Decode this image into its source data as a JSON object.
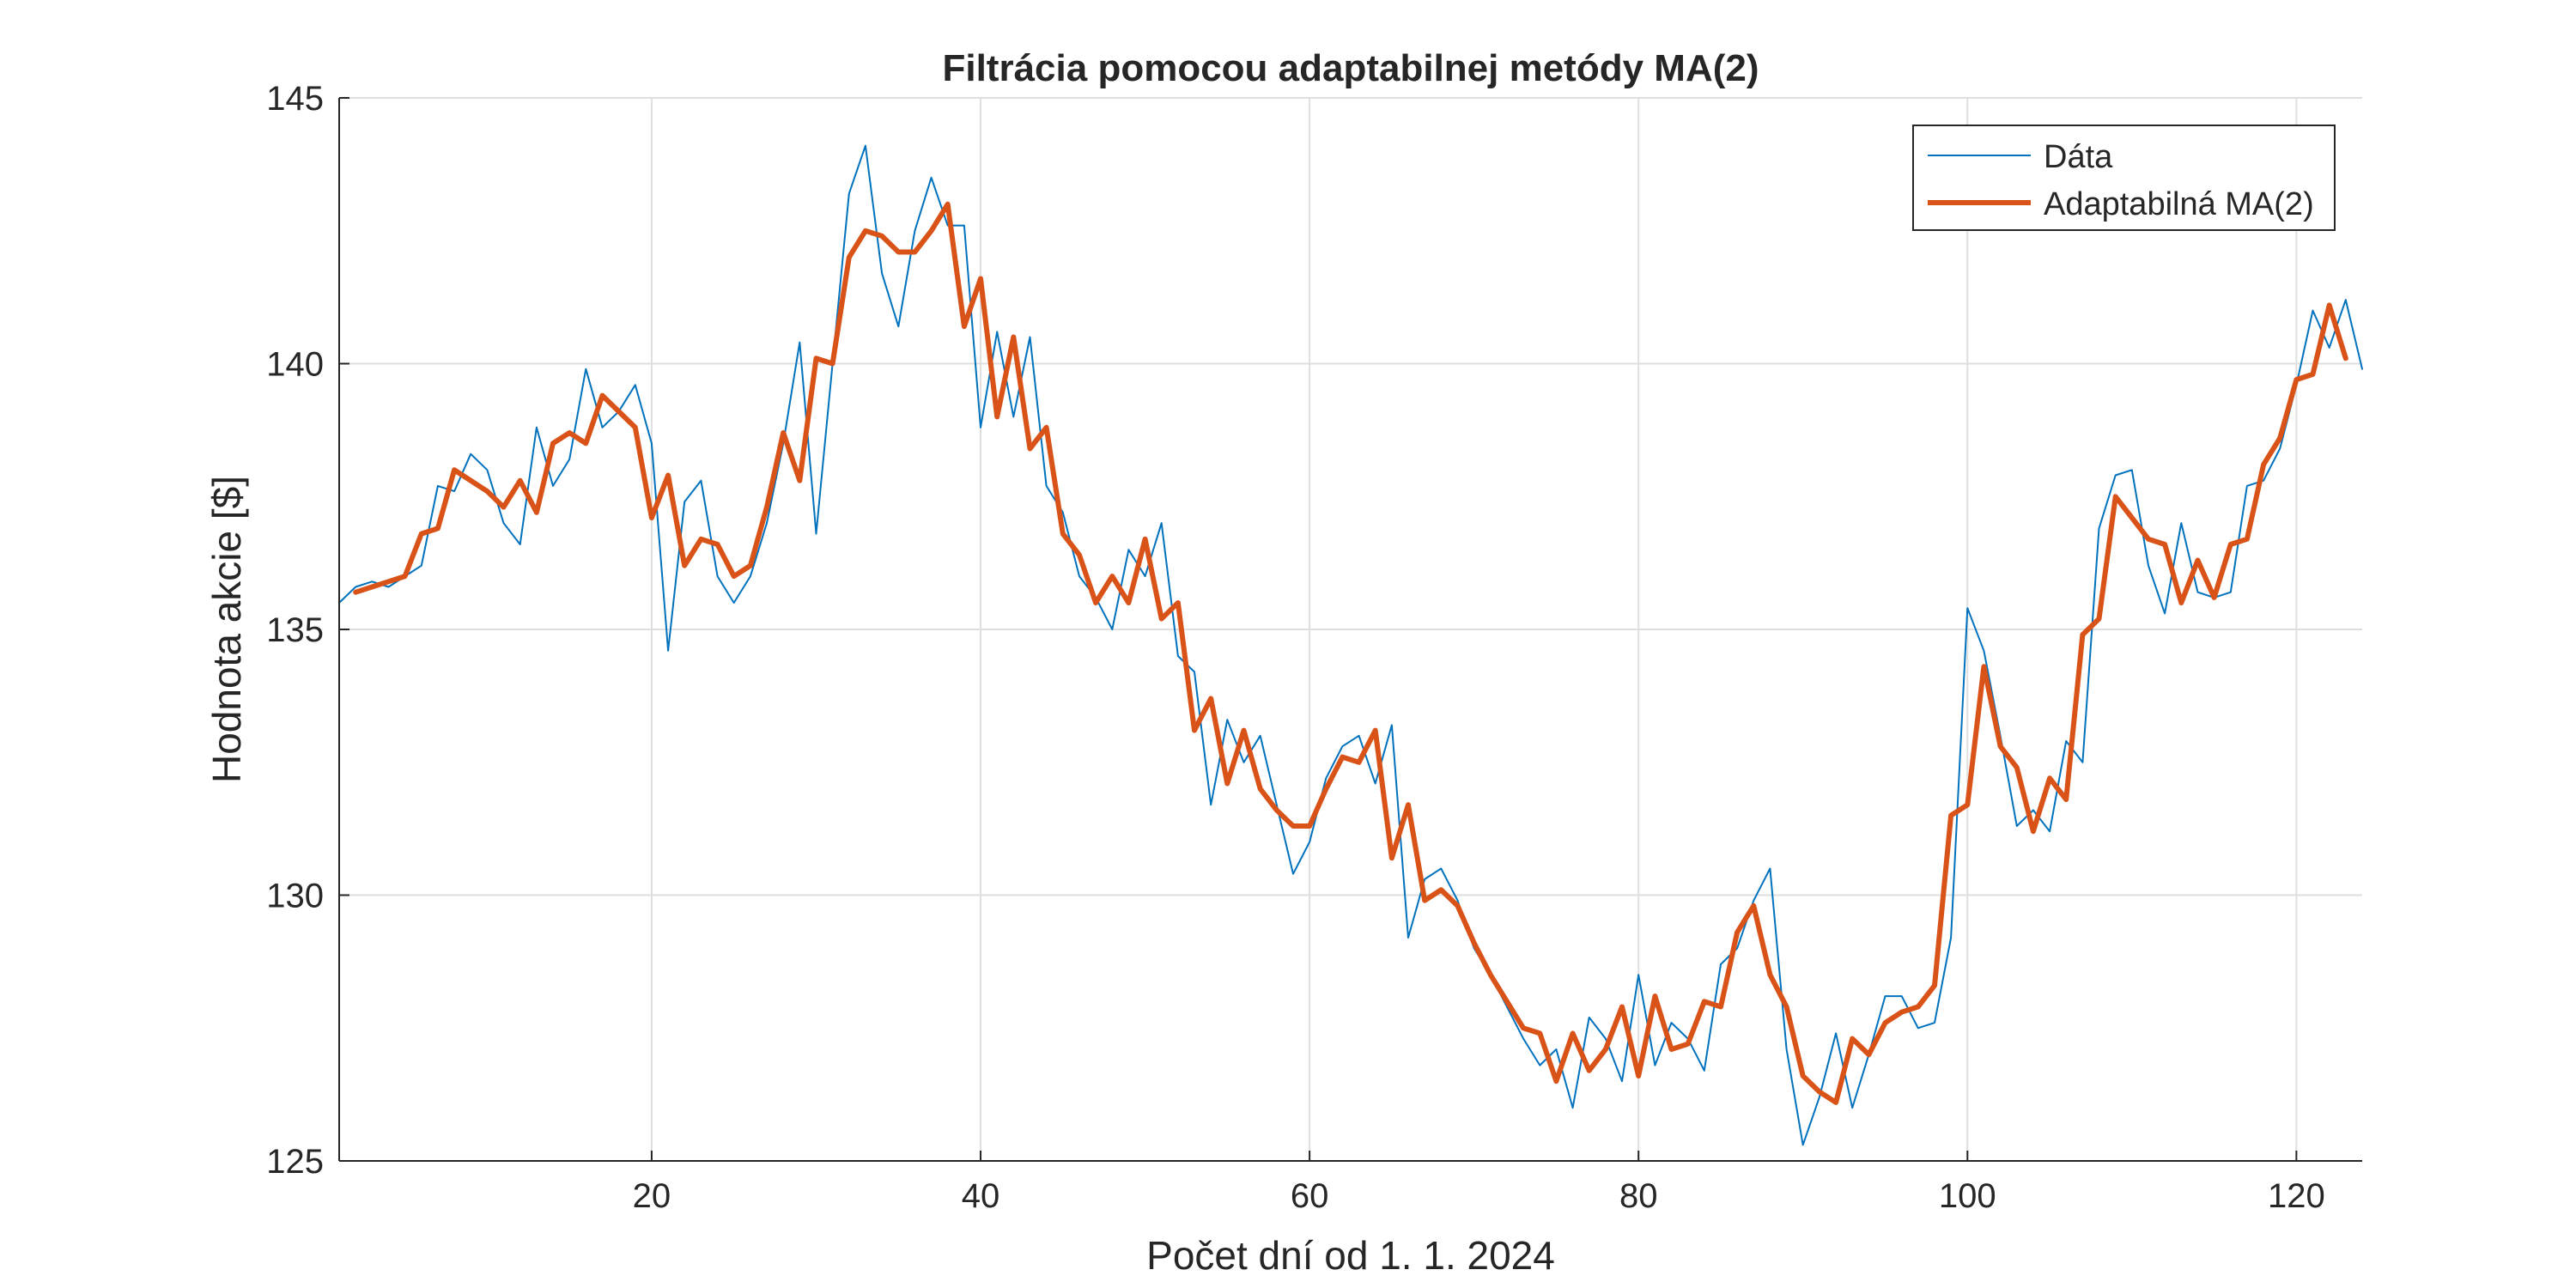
{
  "chart_data": {
    "type": "line",
    "title": "Filtrácia pomocou adaptabilnej metódy MA(2)",
    "xlabel": "Počet dní od 1. 1. 2024",
    "ylabel": "Hodnota akcie [$]",
    "xlim": [
      1,
      124
    ],
    "ylim": [
      125,
      145
    ],
    "xticks": [
      20,
      40,
      60,
      80,
      100,
      120
    ],
    "yticks": [
      125,
      130,
      135,
      140,
      145
    ],
    "grid": true,
    "legend_position": "top-right",
    "series": [
      {
        "name": "Dáta",
        "color": "#0072BD",
        "line_width": "thin",
        "x": [
          1,
          2,
          3,
          4,
          5,
          6,
          7,
          8,
          9,
          10,
          11,
          12,
          13,
          14,
          15,
          16,
          17,
          18,
          19,
          20,
          21,
          22,
          23,
          24,
          25,
          26,
          27,
          28,
          29,
          30,
          31,
          32,
          33,
          34,
          35,
          36,
          37,
          38,
          39,
          40,
          41,
          42,
          43,
          44,
          45,
          46,
          47,
          48,
          49,
          50,
          51,
          52,
          53,
          54,
          55,
          56,
          57,
          58,
          59,
          60,
          61,
          62,
          63,
          64,
          65,
          66,
          67,
          68,
          69,
          70,
          71,
          72,
          73,
          74,
          75,
          76,
          77,
          78,
          79,
          80,
          81,
          82,
          83,
          84,
          85,
          86,
          87,
          88,
          89,
          90,
          91,
          92,
          93,
          94,
          95,
          96,
          97,
          98,
          99,
          100,
          101,
          102,
          103,
          104,
          105,
          106,
          107,
          108,
          109,
          110,
          111,
          112,
          113,
          114,
          115,
          116,
          117,
          118,
          119,
          120,
          121,
          122,
          123,
          124
        ],
        "y": [
          135.5,
          135.8,
          135.9,
          135.8,
          136.0,
          136.2,
          137.7,
          137.6,
          138.3,
          138.0,
          137.0,
          136.6,
          138.8,
          137.7,
          138.2,
          139.9,
          138.8,
          139.1,
          139.6,
          138.5,
          134.6,
          137.4,
          137.8,
          136.0,
          135.5,
          136.0,
          137.0,
          138.5,
          140.4,
          136.8,
          140.0,
          143.2,
          144.1,
          141.7,
          140.7,
          142.5,
          143.5,
          142.6,
          142.6,
          138.8,
          140.6,
          139.0,
          140.5,
          137.7,
          137.2,
          136.0,
          135.6,
          135.0,
          136.5,
          136.0,
          137.0,
          134.5,
          134.2,
          131.7,
          133.3,
          132.5,
          133.0,
          131.7,
          130.4,
          131.0,
          132.2,
          132.8,
          133.0,
          132.1,
          133.2,
          129.2,
          130.3,
          130.5,
          129.9,
          129.0,
          128.5,
          127.9,
          127.3,
          126.8,
          127.1,
          126.0,
          127.7,
          127.3,
          126.5,
          128.5,
          126.8,
          127.6,
          127.3,
          126.7,
          128.7,
          129.0,
          129.9,
          130.5,
          127.1,
          125.3,
          126.2,
          127.4,
          126.0,
          127.0,
          128.1,
          128.1,
          127.5,
          127.6,
          129.2,
          135.4,
          134.6,
          133.0,
          131.3,
          131.6,
          131.2,
          132.9,
          132.5,
          136.9,
          137.9,
          138.0,
          136.2,
          135.3,
          137.0,
          135.7,
          135.6,
          135.7,
          137.7,
          137.8,
          138.4,
          139.6,
          141.0,
          140.3,
          141.2,
          139.9
        ]
      },
      {
        "name": "Adaptabilná MA(2)",
        "color": "#D95319",
        "line_width": "thick",
        "x": [
          2,
          3,
          4,
          5,
          6,
          7,
          8,
          9,
          10,
          11,
          12,
          13,
          14,
          15,
          16,
          17,
          18,
          19,
          20,
          21,
          22,
          23,
          24,
          25,
          26,
          27,
          28,
          29,
          30,
          31,
          32,
          33,
          34,
          35,
          36,
          37,
          38,
          39,
          40,
          41,
          42,
          43,
          44,
          45,
          46,
          47,
          48,
          49,
          50,
          51,
          52,
          53,
          54,
          55,
          56,
          57,
          58,
          59,
          60,
          61,
          62,
          63,
          64,
          65,
          66,
          67,
          68,
          69,
          70,
          71,
          72,
          73,
          74,
          75,
          76,
          77,
          78,
          79,
          80,
          81,
          82,
          83,
          84,
          85,
          86,
          87,
          88,
          89,
          90,
          91,
          92,
          93,
          94,
          95,
          96,
          97,
          98,
          99,
          100,
          101,
          102,
          103,
          104,
          105,
          106,
          107,
          108,
          109,
          110,
          111,
          112,
          113,
          114,
          115,
          116,
          117,
          118,
          119,
          120,
          121,
          122,
          123
        ],
        "y": [
          135.7,
          135.8,
          135.9,
          136.0,
          136.8,
          136.9,
          138.0,
          137.8,
          137.6,
          137.3,
          137.8,
          137.2,
          138.5,
          138.7,
          138.5,
          139.4,
          139.1,
          138.8,
          137.1,
          137.9,
          136.2,
          136.7,
          136.6,
          136.0,
          136.2,
          137.3,
          138.7,
          137.8,
          140.1,
          140.0,
          142.0,
          142.5,
          142.4,
          142.1,
          142.1,
          142.5,
          143.0,
          140.7,
          141.6,
          139.0,
          140.5,
          138.4,
          138.8,
          136.8,
          136.4,
          135.5,
          136.0,
          135.5,
          136.7,
          135.2,
          135.5,
          133.1,
          133.7,
          132.1,
          133.1,
          132.0,
          131.6,
          131.3,
          131.3,
          132.0,
          132.6,
          132.5,
          133.1,
          130.7,
          131.7,
          129.9,
          130.1,
          129.8,
          129.1,
          128.5,
          128.0,
          127.5,
          127.4,
          126.5,
          127.4,
          126.7,
          127.1,
          127.9,
          126.6,
          128.1,
          127.1,
          127.2,
          128.0,
          127.9,
          129.3,
          129.8,
          128.5,
          127.9,
          126.6,
          126.3,
          126.1,
          127.3,
          127.0,
          127.6,
          127.8,
          127.9,
          128.3,
          131.5,
          131.7,
          134.3,
          132.8,
          132.4,
          131.2,
          132.2,
          131.8,
          134.9,
          135.2,
          137.5,
          137.1,
          136.7,
          136.6,
          135.5,
          136.3,
          135.6,
          136.6,
          136.7,
          138.1,
          138.6,
          139.7,
          139.8,
          141.1,
          140.1
        ]
      }
    ]
  }
}
